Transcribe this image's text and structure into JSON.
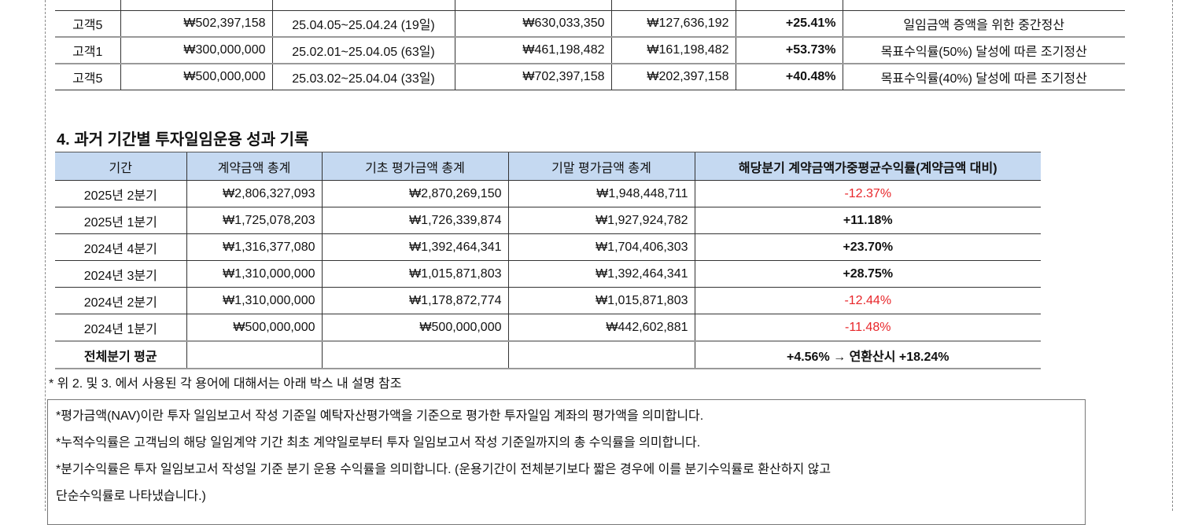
{
  "settlement_rows": [
    {
      "client": "고객5",
      "contract": "₩502,397,158",
      "period": "25.04.05~25.04.24 (19일)",
      "final_nav": "₩630,033,350",
      "profit": "₩127,636,192",
      "rate": "+25.41%",
      "reason": "일임금액 증액을 위한 중간정산"
    },
    {
      "client": "고객1",
      "contract": "₩300,000,000",
      "period": "25.02.01~25.04.05 (63일)",
      "final_nav": "₩461,198,482",
      "profit": "₩161,198,482",
      "rate": "+53.73%",
      "reason": "목표수익률(50%) 달성에 따른 조기정산"
    },
    {
      "client": "고객5",
      "contract": "₩500,000,000",
      "period": "25.03.02~25.04.04 (33일)",
      "final_nav": "₩702,397,158",
      "profit": "₩202,397,158",
      "rate": "+40.48%",
      "reason": "목표수익률(40%) 달성에 따른 조기정산"
    }
  ],
  "section4": {
    "title": "4. 과거 기간별 투자일임운용 성과 기록",
    "headers": [
      "기간",
      "계약금액 총계",
      "기초 평가금액 총계",
      "기말 평가금액 총계",
      "해당분기 계약금액가중평균수익률(계약금액 대비)"
    ],
    "rows": [
      {
        "period": "2025년 2분기",
        "contract": "₩2,806,327,093",
        "start": "₩2,870,269,150",
        "end": "₩1,948,448,711",
        "rate": "-12.37%",
        "negative": true
      },
      {
        "period": "2025년 1분기",
        "contract": "₩1,725,078,203",
        "start": "₩1,726,339,874",
        "end": "₩1,927,924,782",
        "rate": "+11.18%",
        "negative": false
      },
      {
        "period": "2024년 4분기",
        "contract": "₩1,316,377,080",
        "start": "₩1,392,464,341",
        "end": "₩1,704,406,303",
        "rate": "+23.70%",
        "negative": false
      },
      {
        "period": "2024년 3분기",
        "contract": "₩1,310,000,000",
        "start": "₩1,015,871,803",
        "end": "₩1,392,464,341",
        "rate": "+28.75%",
        "negative": false
      },
      {
        "period": "2024년 2분기",
        "contract": "₩1,310,000,000",
        "start": "₩1,178,872,774",
        "end": "₩1,015,871,803",
        "rate": "-12.44%",
        "negative": true
      },
      {
        "period": "2024년 1분기",
        "contract": "₩500,000,000",
        "start": "₩500,000,000",
        "end": "₩442,602,881",
        "rate": "-11.48%",
        "negative": true
      }
    ],
    "average_label": "전체분기 평균",
    "average_value": "+4.56% → 연환산시 +18.24%"
  },
  "note": "* 위 2. 및 3. 에서 사용된 각 용어에 대해서는 아래 박스 내 설명 참조",
  "definitions": [
    "*평가금액(NAV)이란 투자 일임보고서 작성 기준일 예탁자산평가액을 기준으로 평가한 투자일임 계좌의 평가액을 의미합니다.",
    "*누적수익률은 고객님의 해당 일임계약 기간 최초 계약일로부터 투자 일임보고서 작성 기준일까지의 총 수익률을 의미합니다.",
    "*분기수익률은 투자 일임보고서 작성일 기준 분기 운용 수익률을 의미합니다. (운용기간이 전체분기보다 짧은 경우에 이를 분기수익률로 환산하지 않고",
    " 단순수익률로 나타냈습니다.)"
  ],
  "colors": {
    "header_bg": "#c5d9f1",
    "negative": "#e8262a"
  }
}
